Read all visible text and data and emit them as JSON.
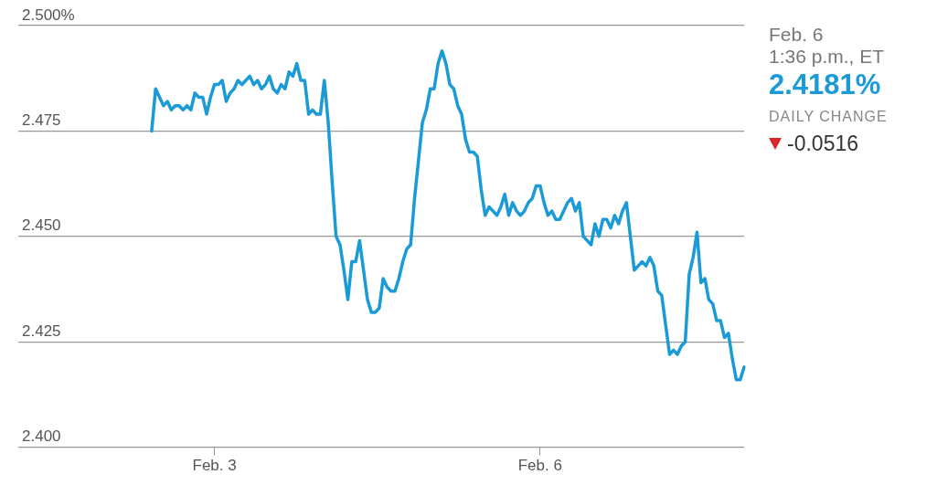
{
  "chart_data": {
    "type": "line",
    "marker": "none",
    "grid": "y",
    "ylim": [
      2.4,
      2.5
    ],
    "yticks": [
      {
        "value": 2.4,
        "label": "2.400"
      },
      {
        "value": 2.425,
        "label": "2.425"
      },
      {
        "value": 2.45,
        "label": "2.450"
      },
      {
        "value": 2.475,
        "label": "2.475"
      },
      {
        "value": 2.5,
        "label": "2.500%"
      }
    ],
    "annotations": [
      "Feb. 6",
      "1:36 p.m., ET",
      "2.4181%",
      "DAILY CHANGE",
      "-0.0516"
    ],
    "categories": [
      null,
      null,
      null,
      null,
      null,
      null,
      null,
      null,
      null,
      null,
      null,
      null,
      null,
      null,
      null,
      null,
      null,
      null,
      null,
      null,
      null,
      null,
      null,
      null,
      null,
      null,
      null,
      null,
      null,
      null,
      null,
      null,
      null,
      null,
      null,
      null,
      null,
      null,
      null,
      null,
      null,
      null,
      null,
      null,
      null,
      null,
      null,
      null,
      null,
      null,
      "Feb. 3",
      null,
      null,
      null,
      null,
      null,
      null,
      null,
      null,
      null,
      null,
      null,
      null,
      null,
      null,
      null,
      null,
      null,
      null,
      null,
      null,
      null,
      null,
      null,
      null,
      null,
      null,
      null,
      null,
      null,
      null,
      null,
      null,
      null,
      null,
      null,
      null,
      null,
      null,
      null,
      null,
      null,
      null,
      null,
      null,
      null,
      null,
      null,
      null,
      null,
      null,
      null,
      null,
      null,
      null,
      null,
      null,
      null,
      null,
      null,
      null,
      null,
      null,
      null,
      null,
      null,
      null,
      null,
      null,
      null,
      null,
      null,
      null,
      null,
      null,
      null,
      null,
      null,
      null,
      null,
      null,
      null,
      null,
      "Feb. 6",
      null,
      null,
      null,
      null,
      null,
      null,
      null,
      null,
      null,
      null,
      null,
      null,
      null,
      null,
      null,
      null,
      null,
      null,
      null,
      null,
      null,
      null,
      null,
      null,
      null,
      null,
      null,
      null,
      null,
      null,
      null,
      null,
      null,
      null,
      null,
      null,
      null,
      null,
      null,
      null,
      null,
      null,
      null,
      null,
      null,
      null,
      null,
      null,
      null,
      null,
      null,
      null
    ],
    "series": [
      {
        "color": "#1b9ad8",
        "values": [
          null,
          null,
          null,
          null,
          null,
          null,
          null,
          null,
          null,
          null,
          null,
          null,
          null,
          null,
          null,
          null,
          null,
          null,
          null,
          null,
          null,
          null,
          null,
          null,
          null,
          null,
          null,
          null,
          null,
          null,
          null,
          null,
          null,
          null,
          2.475,
          2.485,
          2.483,
          2.481,
          2.482,
          2.48,
          2.481,
          2.481,
          2.48,
          2.481,
          2.48,
          2.484,
          2.483,
          2.483,
          2.479,
          2.483,
          2.486,
          2.486,
          2.487,
          2.482,
          2.484,
          2.485,
          2.487,
          2.486,
          2.487,
          2.488,
          2.486,
          2.487,
          2.485,
          2.486,
          2.488,
          2.485,
          2.484,
          2.486,
          2.485,
          2.489,
          2.488,
          2.491,
          2.487,
          2.487,
          2.479,
          2.48,
          2.479,
          2.479,
          2.487,
          2.477,
          2.463,
          2.45,
          2.448,
          2.442,
          2.435,
          2.444,
          2.444,
          2.449,
          2.442,
          2.435,
          2.432,
          2.432,
          2.433,
          2.44,
          2.438,
          2.437,
          2.437,
          2.44,
          2.444,
          2.447,
          2.448,
          2.459,
          2.468,
          2.477,
          2.48,
          2.485,
          2.485,
          2.491,
          2.494,
          2.491,
          2.486,
          2.485,
          2.481,
          2.479,
          2.473,
          2.47,
          2.47,
          2.469,
          2.461,
          2.455,
          2.457,
          2.456,
          2.455,
          2.457,
          2.46,
          2.455,
          2.458,
          2.456,
          2.455,
          2.456,
          2.458,
          2.459,
          2.462,
          2.462,
          2.458,
          2.455,
          2.456,
          2.454,
          2.454,
          2.456,
          2.458,
          2.459,
          2.456,
          2.458,
          2.45,
          2.449,
          2.448,
          2.453,
          2.45,
          2.454,
          2.454,
          2.452,
          2.455,
          2.453,
          2.456,
          2.458,
          2.45,
          2.442,
          2.443,
          2.444,
          2.443,
          2.445,
          2.443,
          2.437,
          2.436,
          2.429,
          2.422,
          2.423,
          2.422,
          2.424,
          2.425,
          2.441,
          2.445,
          2.451,
          2.439,
          2.44,
          2.435,
          2.434,
          2.43,
          2.43,
          2.426,
          2.427,
          2.421,
          2.416,
          2.416,
          2.419
        ]
      }
    ]
  }
}
